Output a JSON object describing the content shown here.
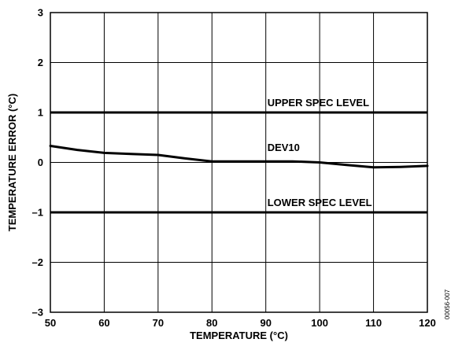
{
  "chart_data": {
    "type": "line",
    "title": "",
    "xlabel": "TEMPERATURE (°C)",
    "ylabel": "TEMPERATURE ERROR (°C)",
    "xlim": [
      50,
      120
    ],
    "ylim": [
      -3,
      3
    ],
    "x_ticks": [
      50,
      60,
      70,
      80,
      90,
      100,
      110,
      120
    ],
    "y_ticks": [
      {
        "value": 3,
        "label": "3"
      },
      {
        "value": 2,
        "label": "2"
      },
      {
        "value": 1,
        "label": "1"
      },
      {
        "value": 0,
        "label": "0"
      },
      {
        "value": -1,
        "label": "–1"
      },
      {
        "value": -2,
        "label": "–2"
      },
      {
        "value": -3,
        "label": "–3"
      }
    ],
    "grid": true,
    "series": [
      {
        "name": "DEV10",
        "x": [
          50,
          55,
          60,
          65,
          70,
          75,
          80,
          85,
          90,
          95,
          100,
          105,
          110,
          115,
          120
        ],
        "y": [
          0.33,
          0.25,
          0.19,
          0.17,
          0.15,
          0.08,
          0.02,
          0.02,
          0.02,
          0.02,
          0.0,
          -0.05,
          -0.1,
          -0.09,
          -0.07
        ]
      }
    ],
    "reference_lines": [
      {
        "name": "UPPER SPEC LEVEL",
        "y": 1
      },
      {
        "name": "LOWER SPEC LEVEL",
        "y": -1
      }
    ],
    "annotations": [
      {
        "text": "UPPER SPEC LEVEL",
        "x": 90,
        "y": 1
      },
      {
        "text": "DEV10",
        "x": 90,
        "y": 0.1
      },
      {
        "text": "LOWER SPEC LEVEL",
        "x": 90,
        "y": -1
      }
    ],
    "figure_id": "00056-007"
  }
}
